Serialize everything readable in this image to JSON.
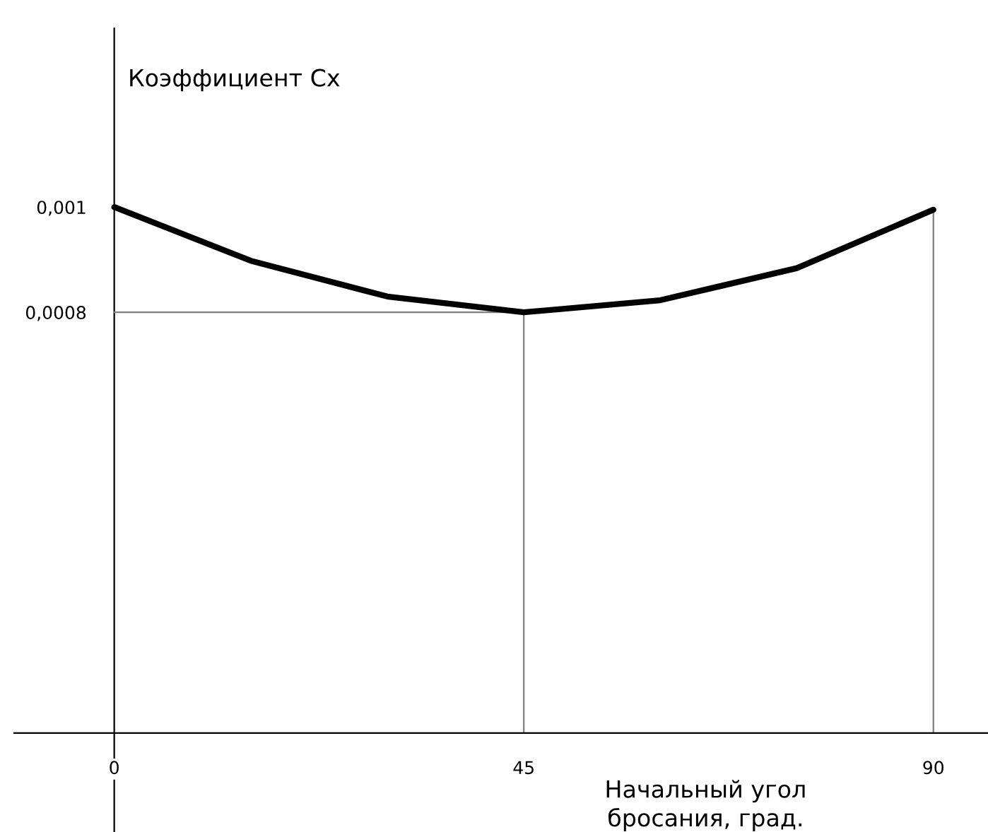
{
  "chart_data": {
    "type": "line",
    "xlabel": "Начальный угол\nбросания, град.",
    "ylabel": "Коэффициент Cx",
    "x": [
      0,
      15,
      30,
      45,
      60,
      75,
      90
    ],
    "series": [
      {
        "color": "#000000",
        "values": [
          0.001,
          0.000898,
          0.00083,
          0.0008,
          0.000823,
          0.000884,
          0.000995
        ]
      }
    ],
    "xlim": [
      -11,
      96
    ],
    "ylim": [
      -0.000188,
      0.00134
    ],
    "xticks": [
      0,
      45,
      90
    ],
    "yticks": [
      {
        "value": 0.0008,
        "label": "0,0008"
      },
      {
        "value": 0.001,
        "label": "0,001"
      }
    ],
    "ref_lines": [
      {
        "axis": "x",
        "value": 45,
        "color": "#808080"
      },
      {
        "axis": "y",
        "value": 0.0008,
        "color": "#808080"
      },
      {
        "axis": "x",
        "value": 90,
        "color": "#808080"
      }
    ],
    "grid": false,
    "legend": false,
    "marker": "none",
    "line_style": "solid"
  }
}
